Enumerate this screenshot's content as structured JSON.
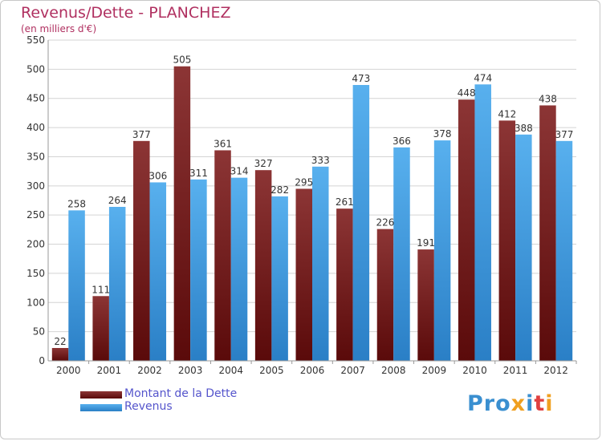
{
  "header": {
    "title": "Revenus/Dette - PLANCHEZ",
    "subtitle": "(en milliers d'€)"
  },
  "legend": {
    "items": [
      {
        "label": "Montant de la Dette",
        "color": "#6b0f0f"
      },
      {
        "label": "Revenus",
        "color": "#3d9be0"
      }
    ]
  },
  "logo": {
    "text": "Proxiti",
    "parts": [
      "Pro",
      "x",
      "i",
      "t",
      "i"
    ]
  },
  "chart_data": {
    "type": "bar",
    "title": "Revenus/Dette - PLANCHEZ",
    "subtitle": "(en milliers d'€)",
    "categories": [
      "2000",
      "2001",
      "2002",
      "2003",
      "2004",
      "2005",
      "2006",
      "2007",
      "2008",
      "2009",
      "2010",
      "2011",
      "2012"
    ],
    "series": [
      {
        "name": "Montant de la Dette",
        "color": "#7a1a1a",
        "values": [
          22,
          111,
          377,
          505,
          361,
          327,
          295,
          261,
          226,
          191,
          448,
          412,
          438
        ]
      },
      {
        "name": "Revenus",
        "color": "#3d9be0",
        "values": [
          258,
          264,
          306,
          311,
          314,
          282,
          333,
          473,
          366,
          378,
          474,
          388,
          377
        ]
      }
    ],
    "ylim": [
      0,
      550
    ],
    "yticks": [
      0,
      50,
      100,
      150,
      200,
      250,
      300,
      350,
      400,
      450,
      500,
      550
    ],
    "grid": true,
    "legend_position": "bottom-left"
  }
}
